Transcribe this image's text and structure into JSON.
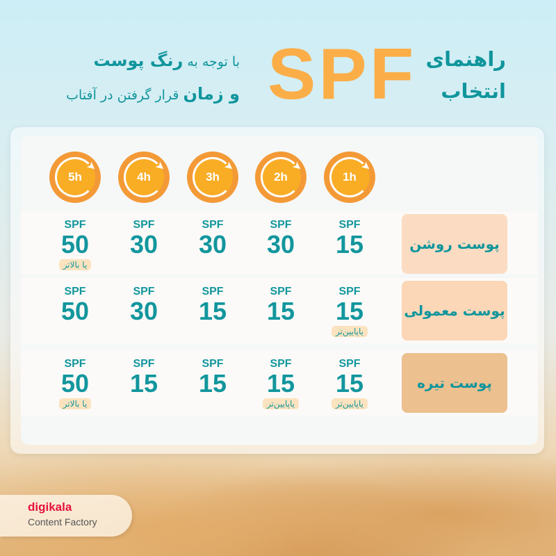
{
  "header": {
    "title_line1": "راهنمای",
    "title_line2": "انتخاب",
    "spf": "SPF",
    "subtitle_line1_plain": "با توجه به",
    "subtitle_line1_bold": "رنگ پوست",
    "subtitle_line2_bold": "و زمان",
    "subtitle_line2_plain": "قرار گرفتن در آفتاب"
  },
  "hours": [
    "5h",
    "4h",
    "3h",
    "2h",
    "1h"
  ],
  "spf_label": "SPF",
  "rows": [
    {
      "label": "پوست روشن",
      "color": "#fbdcc2",
      "cells": [
        {
          "v": "50",
          "note": "یا بالاتر"
        },
        {
          "v": "30"
        },
        {
          "v": "30"
        },
        {
          "v": "30"
        },
        {
          "v": "15"
        }
      ]
    },
    {
      "label": "پوست معمولی",
      "color": "#fbd7b8",
      "cells": [
        {
          "v": "50"
        },
        {
          "v": "30"
        },
        {
          "v": "15"
        },
        {
          "v": "15"
        },
        {
          "v": "15",
          "note": "یاپایین‌تر"
        }
      ]
    },
    {
      "label": "پوست تیره",
      "color": "#ecc08f",
      "cells": [
        {
          "v": "50",
          "note": "یا بالاتر"
        },
        {
          "v": "15"
        },
        {
          "v": "15"
        },
        {
          "v": "15",
          "note": "یاپایین‌تر"
        },
        {
          "v": "15",
          "note": "یاپایین‌تر"
        }
      ]
    }
  ],
  "brand": {
    "name": "digikala",
    "sub": "Content Factory"
  },
  "colors": {
    "teal": "#10959c",
    "orange": "#fbae48"
  }
}
